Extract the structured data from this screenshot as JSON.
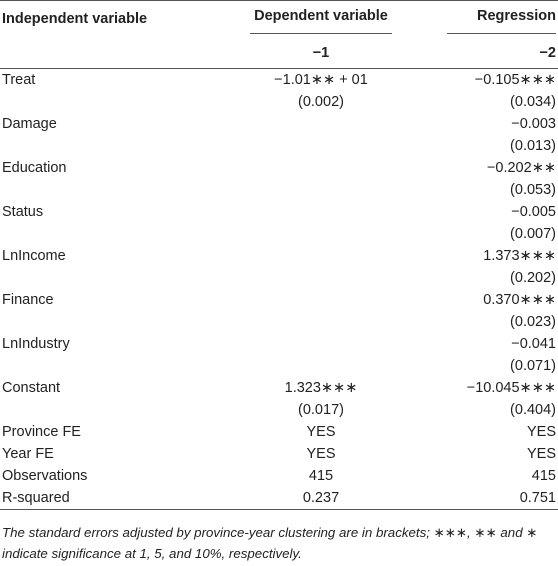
{
  "table": {
    "header": [
      "Independent variable",
      "Dependent variable",
      "Regression"
    ],
    "subheader": [
      "−1",
      "−2"
    ],
    "rows": [
      {
        "label": "Treat",
        "cells": [
          "−1.01∗∗ + 01",
          "−0.105∗∗∗"
        ],
        "se": [
          "(0.002)",
          "(0.034)"
        ]
      },
      {
        "label": "Damage",
        "cells": [
          null,
          "−0.003"
        ],
        "se": [
          null,
          "(0.013)"
        ]
      },
      {
        "label": "Education",
        "cells": [
          null,
          "−0.202∗∗"
        ],
        "se": [
          null,
          "(0.053)"
        ]
      },
      {
        "label": "Status",
        "cells": [
          null,
          "−0.005"
        ],
        "se": [
          null,
          "(0.007)"
        ]
      },
      {
        "label": "LnIncome",
        "cells": [
          null,
          "1.373∗∗∗"
        ],
        "se": [
          null,
          "(0.202)"
        ]
      },
      {
        "label": "Finance",
        "cells": [
          null,
          "0.370∗∗∗"
        ],
        "se": [
          null,
          "(0.023)"
        ]
      },
      {
        "label": "LnIndustry",
        "cells": [
          null,
          "−0.041"
        ],
        "se": [
          null,
          "(0.071)"
        ]
      },
      {
        "label": "Constant",
        "cells": [
          "1.323∗∗∗",
          "−10.045∗∗∗"
        ],
        "se": [
          "(0.017)",
          "(0.404)"
        ]
      },
      {
        "label": "Province FE",
        "cells": [
          "YES",
          "YES"
        ]
      },
      {
        "label": "Year FE",
        "cells": [
          "YES",
          "YES"
        ]
      },
      {
        "label": "Observations",
        "cells": [
          "415",
          "415"
        ]
      },
      {
        "label": "R-squared",
        "cells": [
          "0.237",
          "0.751"
        ]
      }
    ],
    "footnote": "The standard errors adjusted by province-year clustering are in brackets; ∗∗∗, ∗∗ and ∗ indicate significance at 1, 5, and 10%, respectively."
  }
}
